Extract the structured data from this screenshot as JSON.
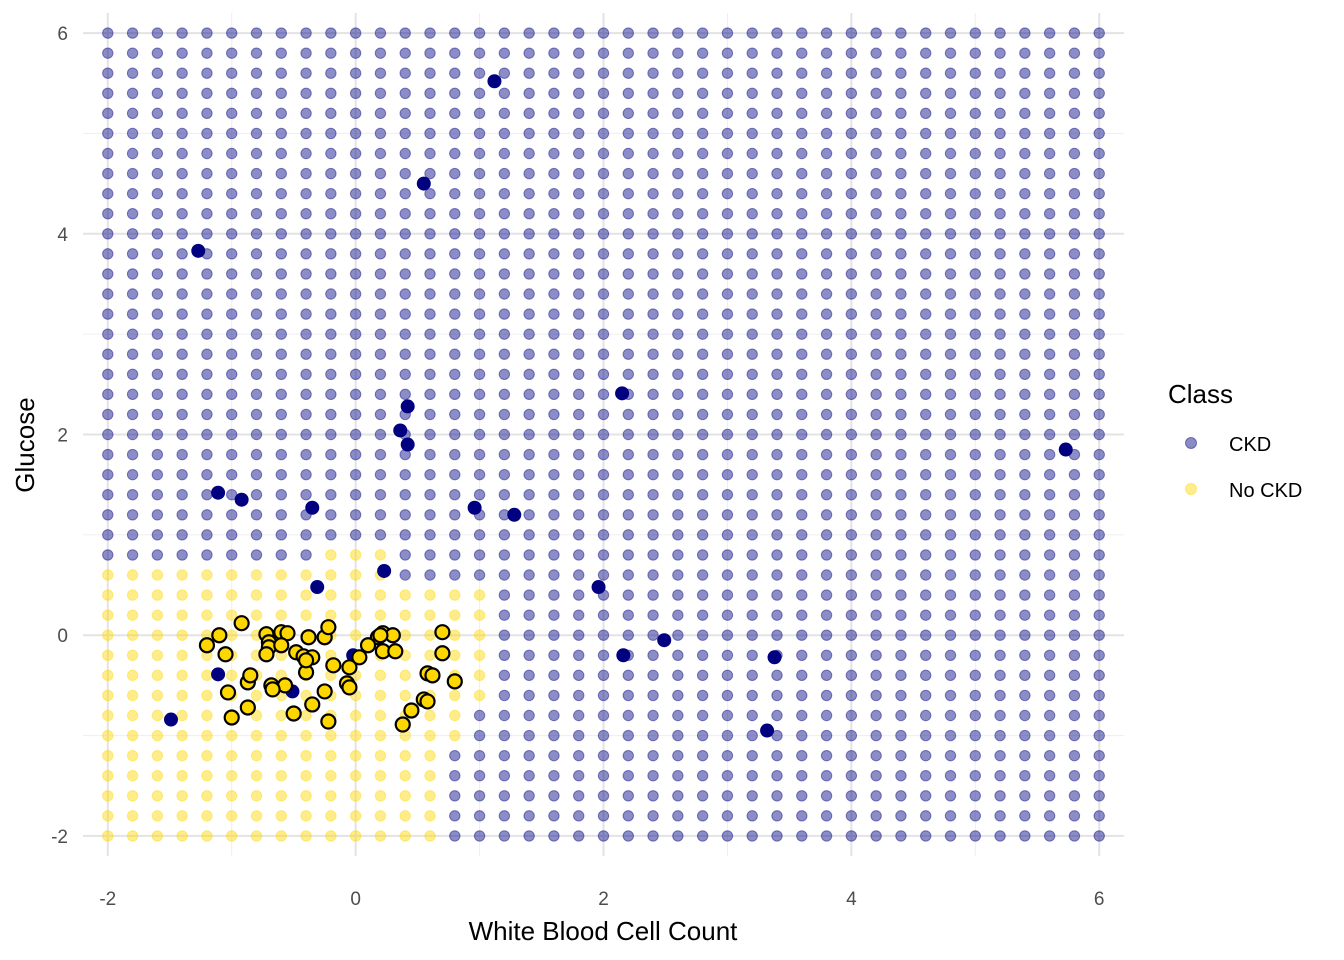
{
  "chart_data": {
    "type": "scatter",
    "xlabel": "White Blood Cell Count",
    "ylabel": "Glucose",
    "xlim": [
      -2.2,
      6.2
    ],
    "ylim": [
      -2.2,
      6.2
    ],
    "x_ticks": [
      -2,
      0,
      2,
      4,
      6
    ],
    "y_ticks": [
      -2,
      0,
      2,
      4,
      6
    ],
    "x_tick_labels": [
      "-2",
      "0",
      "2",
      "4",
      "6"
    ],
    "y_tick_labels": [
      "-2",
      "0",
      "2",
      "4",
      "6"
    ],
    "grid": true,
    "legend": {
      "title": "Class",
      "position": "right",
      "entries": [
        {
          "label": "CKD",
          "color": "#00007F"
        },
        {
          "label": "No CKD",
          "color": "#FFD700"
        }
      ]
    },
    "colors": {
      "CKD": "#000080",
      "No CKD": "#FFD700",
      "grid_point_alpha": 0.45
    },
    "background_grid": {
      "x_min": -2,
      "x_max": 6,
      "y_min": -2,
      "y_max": 6,
      "resolution": 41,
      "no_ckd_region": [
        {
          "y_min": -2.0,
          "y_max": -1.2,
          "x_max": 0.6
        },
        {
          "y_min": -1.0,
          "y_max": -0.8,
          "x_max": 0.8
        },
        {
          "y_min": -0.6,
          "y_max": 0.4,
          "x_max": 1.0
        },
        {
          "y_min": 0.6,
          "y_max": 0.6,
          "x_max": 0.2
        },
        {
          "y_min": 0.8,
          "y_max": 0.8,
          "x_max": 0.2,
          "x_min": -0.2
        }
      ]
    },
    "series": [
      {
        "name": "CKD",
        "points": [
          [
            1.12,
            5.52
          ],
          [
            0.55,
            4.5
          ],
          [
            -1.27,
            3.83
          ],
          [
            2.15,
            2.41
          ],
          [
            0.42,
            2.28
          ],
          [
            0.36,
            2.04
          ],
          [
            0.42,
            1.9
          ],
          [
            5.73,
            1.85
          ],
          [
            -1.11,
            1.42
          ],
          [
            -0.92,
            1.35
          ],
          [
            -0.35,
            1.27
          ],
          [
            0.96,
            1.27
          ],
          [
            1.28,
            1.2
          ],
          [
            0.23,
            0.64
          ],
          [
            -0.31,
            0.48
          ],
          [
            1.96,
            0.48
          ],
          [
            -0.72,
            0.02
          ],
          [
            2.49,
            -0.05
          ],
          [
            -0.02,
            -0.2
          ],
          [
            2.16,
            -0.2
          ],
          [
            3.38,
            -0.22
          ],
          [
            -1.11,
            -0.39
          ],
          [
            -0.51,
            -0.56
          ],
          [
            -1.49,
            -0.84
          ],
          [
            3.32,
            -0.95
          ]
        ]
      },
      {
        "name": "No CKD",
        "points": [
          [
            -1.2,
            -0.1
          ],
          [
            -1.1,
            0.0
          ],
          [
            -1.05,
            -0.19
          ],
          [
            -0.92,
            0.12
          ],
          [
            -0.72,
            0.01
          ],
          [
            -0.7,
            -0.07
          ],
          [
            -0.7,
            -0.12
          ],
          [
            -0.6,
            0.03
          ],
          [
            -0.55,
            0.02
          ],
          [
            -0.72,
            -0.19
          ],
          [
            -0.48,
            -0.17
          ],
          [
            -0.42,
            -0.21
          ],
          [
            -0.38,
            -0.02
          ],
          [
            -0.35,
            -0.22
          ],
          [
            -0.25,
            -0.02
          ],
          [
            -0.22,
            0.08
          ],
          [
            -0.18,
            -0.3
          ],
          [
            -0.05,
            -0.32
          ],
          [
            0.03,
            -0.22
          ],
          [
            0.18,
            -0.02
          ],
          [
            0.22,
            0.02
          ],
          [
            0.3,
            0.0
          ],
          [
            0.22,
            -0.16
          ],
          [
            0.32,
            -0.16
          ],
          [
            0.7,
            0.03
          ],
          [
            0.7,
            -0.18
          ],
          [
            0.58,
            -0.38
          ],
          [
            0.62,
            -0.4
          ],
          [
            -0.68,
            -0.5
          ],
          [
            -0.57,
            -0.5
          ],
          [
            -0.87,
            -0.47
          ],
          [
            -0.85,
            -0.4
          ],
          [
            -1.03,
            -0.57
          ],
          [
            -0.67,
            -0.54
          ],
          [
            -0.4,
            -0.37
          ],
          [
            -0.07,
            -0.48
          ],
          [
            -0.05,
            -0.52
          ],
          [
            -0.25,
            -0.56
          ],
          [
            -0.35,
            -0.69
          ],
          [
            0.8,
            -0.46
          ],
          [
            0.55,
            -0.64
          ],
          [
            0.58,
            -0.66
          ],
          [
            0.45,
            -0.75
          ],
          [
            -0.87,
            -0.72
          ],
          [
            -0.5,
            -0.78
          ],
          [
            -1.0,
            -0.82
          ],
          [
            -0.22,
            -0.86
          ],
          [
            0.38,
            -0.89
          ],
          [
            -0.4,
            -0.25
          ],
          [
            0.2,
            0.0
          ],
          [
            -0.6,
            -0.1
          ],
          [
            0.1,
            -0.1
          ]
        ]
      }
    ]
  }
}
